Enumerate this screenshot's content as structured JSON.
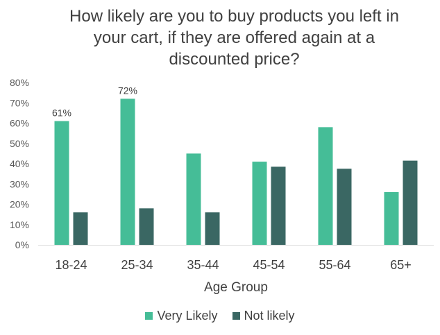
{
  "chart_data": {
    "type": "bar",
    "title_lines": [
      "How likely are you to buy products you left in",
      "your cart, if they are offered again at a",
      "discounted price?"
    ],
    "xlabel": "Age Group",
    "ylabel": "",
    "categories": [
      "18-24",
      "25-34",
      "35-44",
      "45-54",
      "55-64",
      "65+"
    ],
    "ylim": [
      0,
      80
    ],
    "yticks": [
      "0%",
      "10%",
      "20%",
      "30%",
      "40%",
      "50%",
      "60%",
      "70%",
      "80%"
    ],
    "grid": false,
    "legend_position": "bottom",
    "series": [
      {
        "name": "Very Likely",
        "color": "#45bd97",
        "values": [
          61,
          72,
          45,
          41,
          58,
          26
        ],
        "data_labels": [
          "61%",
          "72%",
          "",
          "",
          "",
          ""
        ]
      },
      {
        "name": "Not likely",
        "color": "#3a6763",
        "values": [
          16,
          18,
          16,
          38.5,
          37.5,
          41.5
        ],
        "data_labels": [
          "",
          "",
          "",
          "",
          "",
          ""
        ]
      }
    ]
  }
}
